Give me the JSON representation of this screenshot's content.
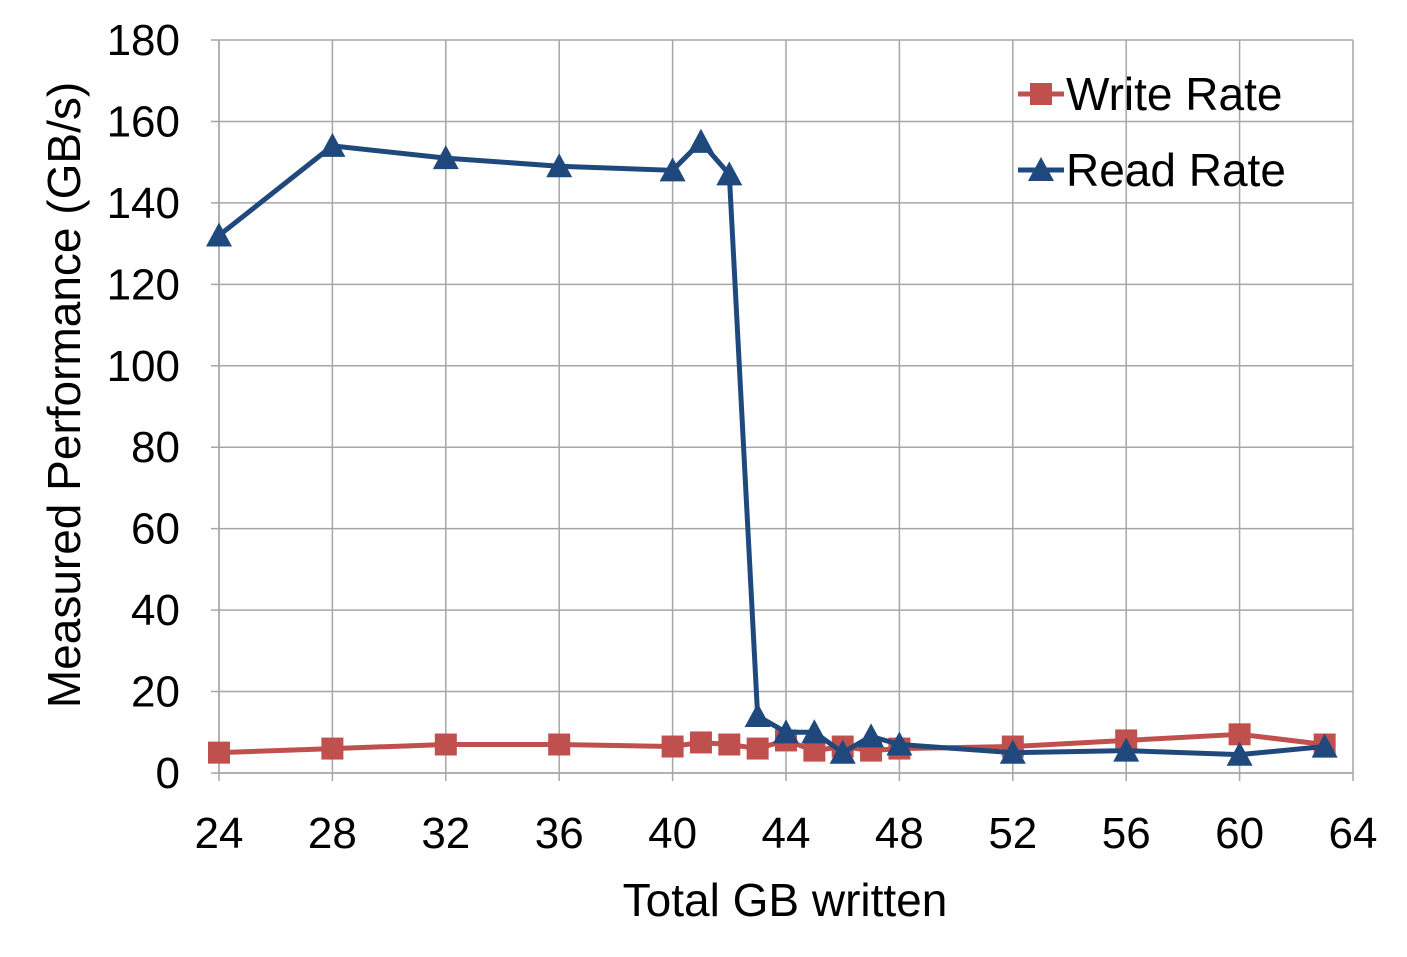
{
  "chart_data": {
    "type": "line",
    "xlabel": "Total GB written",
    "ylabel": "Measured Performance (GB/s)",
    "xlim": [
      24,
      64
    ],
    "ylim": [
      0,
      180
    ],
    "x_ticks": [
      24,
      28,
      32,
      36,
      40,
      44,
      48,
      52,
      56,
      60,
      64
    ],
    "y_ticks": [
      0,
      20,
      40,
      60,
      80,
      100,
      120,
      140,
      160,
      180
    ],
    "x_tick_labels": [
      "24",
      "28",
      "32",
      "36",
      "40",
      "44",
      "48",
      "52",
      "56",
      "60",
      "64"
    ],
    "y_tick_labels": [
      "0",
      "20",
      "40",
      "60",
      "80",
      "100",
      "120",
      "140",
      "160",
      "180"
    ],
    "grid": true,
    "legend_position": "top-right",
    "series": [
      {
        "name": "Write Rate",
        "color": "#c0504d",
        "marker": "square",
        "x": [
          24,
          28,
          32,
          36,
          40,
          41,
          42,
          43,
          44,
          45,
          46,
          47,
          48,
          52,
          56,
          60,
          63
        ],
        "y": [
          5,
          6,
          7,
          7,
          6.5,
          7.5,
          7,
          6,
          8,
          5.5,
          6.5,
          5.5,
          6,
          6.5,
          8,
          9.5,
          7
        ]
      },
      {
        "name": "Read Rate",
        "color": "#1f497d",
        "marker": "triangle",
        "x": [
          24,
          28,
          32,
          36,
          40,
          41,
          42,
          43,
          44,
          45,
          46,
          47,
          48,
          52,
          56,
          60,
          63
        ],
        "y": [
          132,
          154,
          151,
          149,
          148,
          155,
          147,
          14,
          10,
          10,
          5,
          9,
          7,
          5,
          5.5,
          4.5,
          6.5
        ]
      }
    ]
  }
}
